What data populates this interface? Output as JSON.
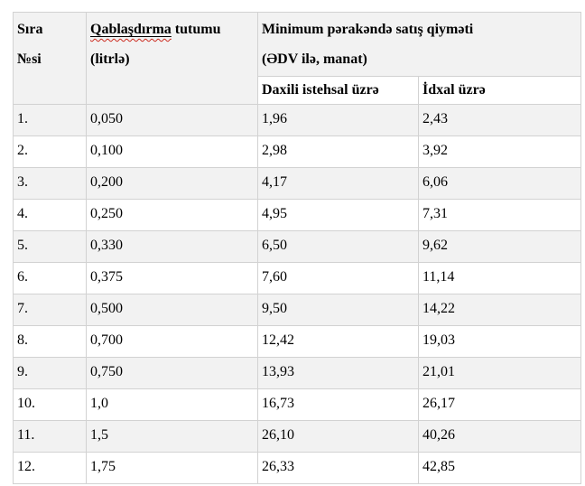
{
  "colors": {
    "stripe": "#f2f2f2",
    "border": "#d2d2d2",
    "spell": "#cc2a1e"
  },
  "table": {
    "header": {
      "sira_line1": "Sıra",
      "sira_line2": "№si",
      "capacity_word_misspelled": "Qablaşdırma",
      "capacity_rest": " tutumu",
      "capacity_line2": "(litrlə)",
      "price_group_line1": "Minimum pərakəndə satış qiyməti",
      "price_group_line2": "(ƏDV ilə, manat)",
      "sub_domestic": "Daxili istehsal üzrə",
      "sub_import": "İdxal üzrə"
    },
    "rows": [
      {
        "no": "1.",
        "capacity": "0,050",
        "domestic": "1,96",
        "import": "2,43"
      },
      {
        "no": "2.",
        "capacity": "0,100",
        "domestic": "2,98",
        "import": "3,92"
      },
      {
        "no": "3.",
        "capacity": "0,200",
        "domestic": "4,17",
        "import": "6,06"
      },
      {
        "no": "4.",
        "capacity": "0,250",
        "domestic": "4,95",
        "import": "7,31"
      },
      {
        "no": "5.",
        "capacity": "0,330",
        "domestic": "6,50",
        "import": "9,62"
      },
      {
        "no": "6.",
        "capacity": "0,375",
        "domestic": "7,60",
        "import": "11,14"
      },
      {
        "no": "7.",
        "capacity": "0,500",
        "domestic": "9,50",
        "import": "14,22"
      },
      {
        "no": "8.",
        "capacity": "0,700",
        "domestic": "12,42",
        "import": "19,03"
      },
      {
        "no": "9.",
        "capacity": "0,750",
        "domestic": "13,93",
        "import": "21,01"
      },
      {
        "no": "10.",
        "capacity": "1,0",
        "domestic": "16,73",
        "import": "26,17"
      },
      {
        "no": "11.",
        "capacity": "1,5",
        "domestic": "26,10",
        "import": "40,26"
      },
      {
        "no": "12.",
        "capacity": "1,75",
        "domestic": "26,33",
        "import": "42,85"
      }
    ]
  }
}
